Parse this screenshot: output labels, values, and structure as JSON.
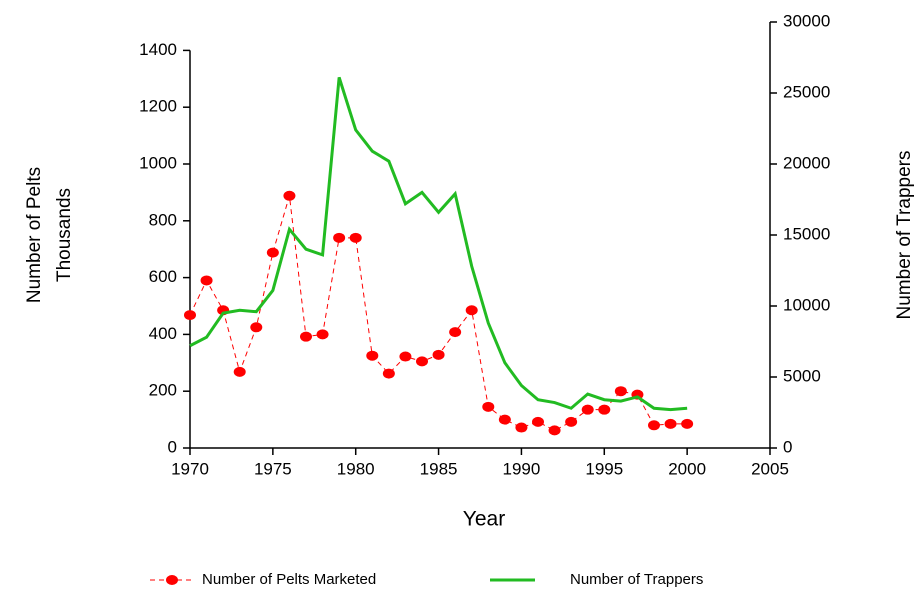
{
  "chart_data": {
    "type": "line",
    "xlabel": "Year",
    "ylabel": [
      "Number of Pelts",
      "Thousands"
    ],
    "y2label": "Number of Trappers",
    "x": [
      1970,
      1971,
      1972,
      1973,
      1974,
      1975,
      1976,
      1977,
      1978,
      1979,
      1980,
      1981,
      1982,
      1983,
      1984,
      1985,
      1986,
      1987,
      1988,
      1989,
      1990,
      1991,
      1992,
      1993,
      1994,
      1995,
      1996,
      1997,
      1998,
      1999,
      2000
    ],
    "series": [
      {
        "name": "Number of Pelts Marketed",
        "color": "#ff0000",
        "axis": "y",
        "values": [
          468,
          590,
          485,
          268,
          425,
          688,
          888,
          392,
          400,
          740,
          740,
          325,
          262,
          322,
          305,
          328,
          408,
          485,
          145,
          100,
          72,
          92,
          62,
          92,
          135,
          135,
          200,
          188,
          80,
          85,
          85
        ]
      },
      {
        "name": "Number of Trappers",
        "color": "#22bb22",
        "axis": "y2",
        "values": [
          7200,
          7800,
          9500,
          9700,
          9600,
          11100,
          15400,
          14000,
          13600,
          26100,
          22400,
          20900,
          20200,
          17200,
          18000,
          16600,
          17900,
          12800,
          8800,
          6000,
          4400,
          3400,
          3200,
          2800,
          3800,
          3400,
          3300,
          3600,
          2800,
          2700,
          2800
        ]
      }
    ],
    "xlim": [
      1970,
      2005
    ],
    "xticks": [
      1970,
      1975,
      1980,
      1985,
      1990,
      1995,
      2000,
      2005
    ],
    "ylim": [
      0,
      1500
    ],
    "yticks": [
      0,
      200,
      400,
      600,
      800,
      1000,
      1200,
      1400
    ],
    "y2lim": [
      0,
      30000
    ],
    "y2ticks": [
      0,
      5000,
      10000,
      15000,
      20000,
      25000,
      30000
    ],
    "legend": "bottom"
  }
}
